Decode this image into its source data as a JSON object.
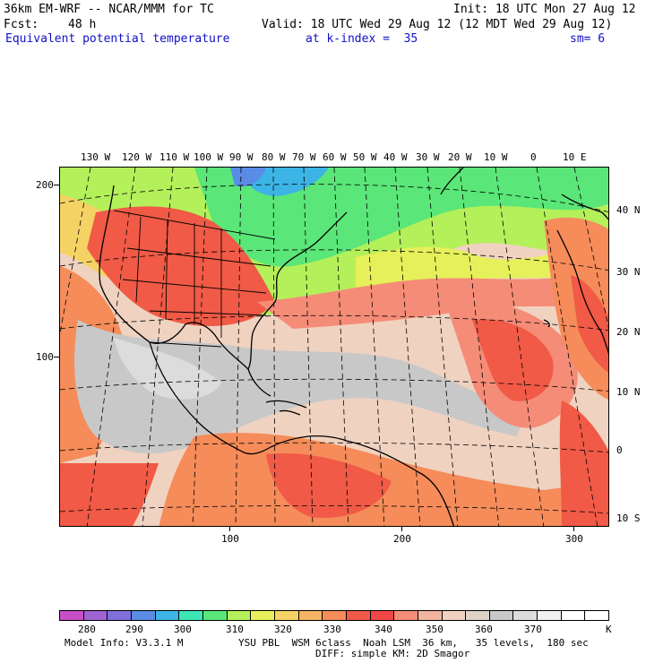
{
  "header": {
    "model_title": "36km EM-WRF -- NCAR/MMM for TC",
    "init": "Init: 18 UTC Mon 27 Aug 12",
    "fcst_label": "Fcst:",
    "fcst_value": "48 h",
    "valid": "Valid: 18 UTC Wed 29 Aug 12 (12 MDT Wed 29 Aug 12)",
    "field": "Equivalent potential temperature",
    "level": "at k-index =  35",
    "smooth": "sm= 6"
  },
  "map": {
    "lon_labels": [
      "130 W",
      "120 W",
      "110 W",
      "100 W",
      "90 W",
      "80 W",
      "70 W",
      "60 W",
      "50 W",
      "40 W",
      "30 W",
      "20 W",
      "10 W",
      "0",
      "10 E"
    ],
    "lat_labels": [
      "40 N",
      "30 N",
      "20 N",
      "10 N",
      "0",
      "10 S"
    ],
    "left_axis": [
      "200",
      "100"
    ],
    "bottom_axis": [
      "100",
      "200",
      "300"
    ]
  },
  "colorbar": {
    "colors": [
      "#c84ec8",
      "#a064d2",
      "#8070dc",
      "#5a8ce6",
      "#3cb4e6",
      "#3ce6b4",
      "#5ae678",
      "#b4f05a",
      "#e6f05a",
      "#f5d264",
      "#f5b464",
      "#f58c5a",
      "#f05a46",
      "#f04646",
      "#f58c78",
      "#f0b4a0",
      "#f0d2c0",
      "#dcd2c8",
      "#c8c8c8",
      "#dcdcdc",
      "#f0f0f0",
      "#ffffff",
      "#ffffff"
    ],
    "labels": [
      "280",
      "290",
      "300",
      "310",
      "320",
      "330",
      "340",
      "350",
      "360",
      "370",
      "K"
    ]
  },
  "footer": {
    "model_info": "Model Info: V3.3.1 M",
    "physics": "YSU PBL  WSM 6class  Noah LSM  36 km,   35 levels,  180 sec",
    "diffusion": "DIFF: simple KM: 2D Smagor"
  }
}
